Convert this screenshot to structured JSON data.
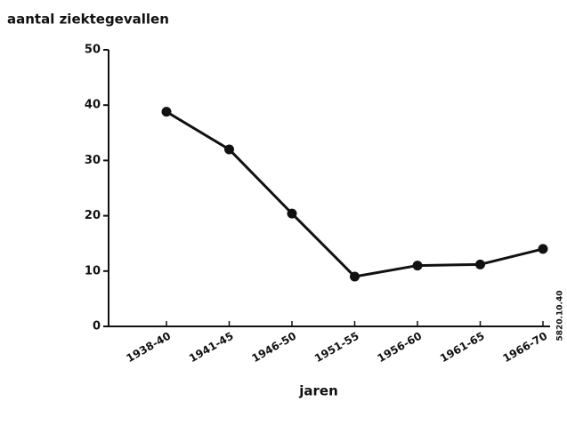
{
  "chart_data": {
    "type": "line",
    "ylabel": "aantal  ziektegevallen",
    "xlabel": "jaren",
    "annotation": "5820.10.40",
    "categories": [
      "1938-40",
      "1941-45",
      "1946-50",
      "1951-55",
      "1956-60",
      "1961-65",
      "1966-70"
    ],
    "values": [
      38.8,
      32,
      20.4,
      9,
      11,
      11.2,
      14
    ],
    "color": "#111111",
    "ylim": [
      0,
      50
    ],
    "yticks": [
      0,
      10,
      20,
      30,
      40,
      50
    ],
    "grid": false
  }
}
